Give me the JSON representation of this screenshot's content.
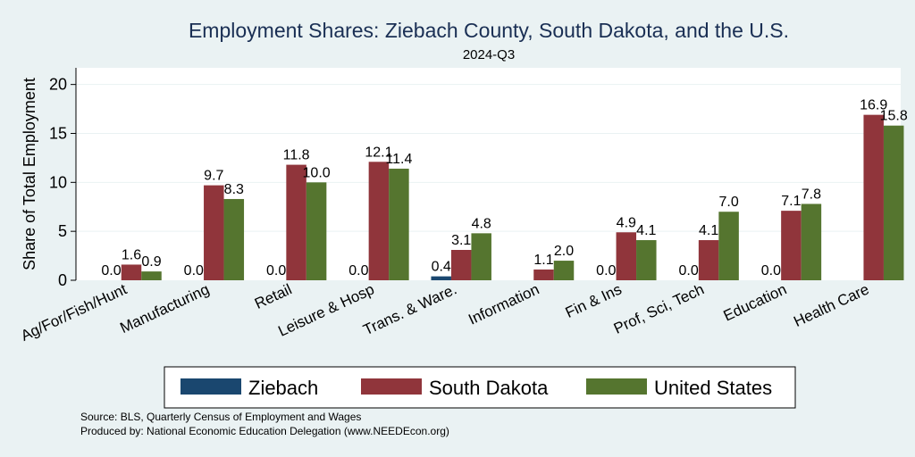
{
  "chart_data": {
    "type": "bar",
    "title": "Employment Shares: Ziebach County, South Dakota, and the U.S.",
    "subtitle": "2024-Q3",
    "ylabel": "Share of Total Employment",
    "xlabel": "",
    "ylim": [
      0,
      21.7
    ],
    "yticks": [
      0,
      5,
      10,
      15,
      20
    ],
    "grid": "horizontal",
    "legend_position": "bottom",
    "categories": [
      "Ag/For/Fish/Hunt",
      "Manufacturing",
      "Retail",
      "Leisure & Hosp",
      "Trans. & Ware.",
      "Information",
      "Fin & Ins",
      "Prof, Sci, Tech",
      "Education",
      "Health Care"
    ],
    "series": [
      {
        "name": "Ziebach",
        "color": "#1a476f",
        "values": [
          0.0,
          0.0,
          0.0,
          0.0,
          0.4,
          null,
          0.0,
          0.0,
          0.0,
          null
        ],
        "labels": [
          "0.0",
          "0.0",
          "0.0",
          "0.0",
          "0.4",
          "",
          "0.0",
          "0.0",
          "0.0",
          ""
        ]
      },
      {
        "name": "South Dakota",
        "color": "#90353b",
        "values": [
          1.6,
          9.7,
          11.8,
          12.1,
          3.1,
          1.1,
          4.9,
          4.1,
          7.1,
          16.9
        ],
        "labels": [
          "1.6",
          "9.7",
          "11.8",
          "12.1",
          "3.1",
          "1.1",
          "4.9",
          "4.1",
          "7.1",
          "16.9"
        ]
      },
      {
        "name": "United States",
        "color": "#55752f",
        "values": [
          0.9,
          8.3,
          10.0,
          11.4,
          4.8,
          2.0,
          4.1,
          7.0,
          7.8,
          15.8
        ],
        "labels": [
          "0.9",
          "8.3",
          "10.0",
          "11.4",
          "4.8",
          "2.0",
          "4.1",
          "7.0",
          "7.8",
          "15.8"
        ]
      }
    ]
  },
  "notes": {
    "source": "Source: BLS, Quarterly Census of Employment and Wages",
    "produced_by": "Produced by: National Economic Education Delegation (www.NEEDEcon.org)"
  }
}
